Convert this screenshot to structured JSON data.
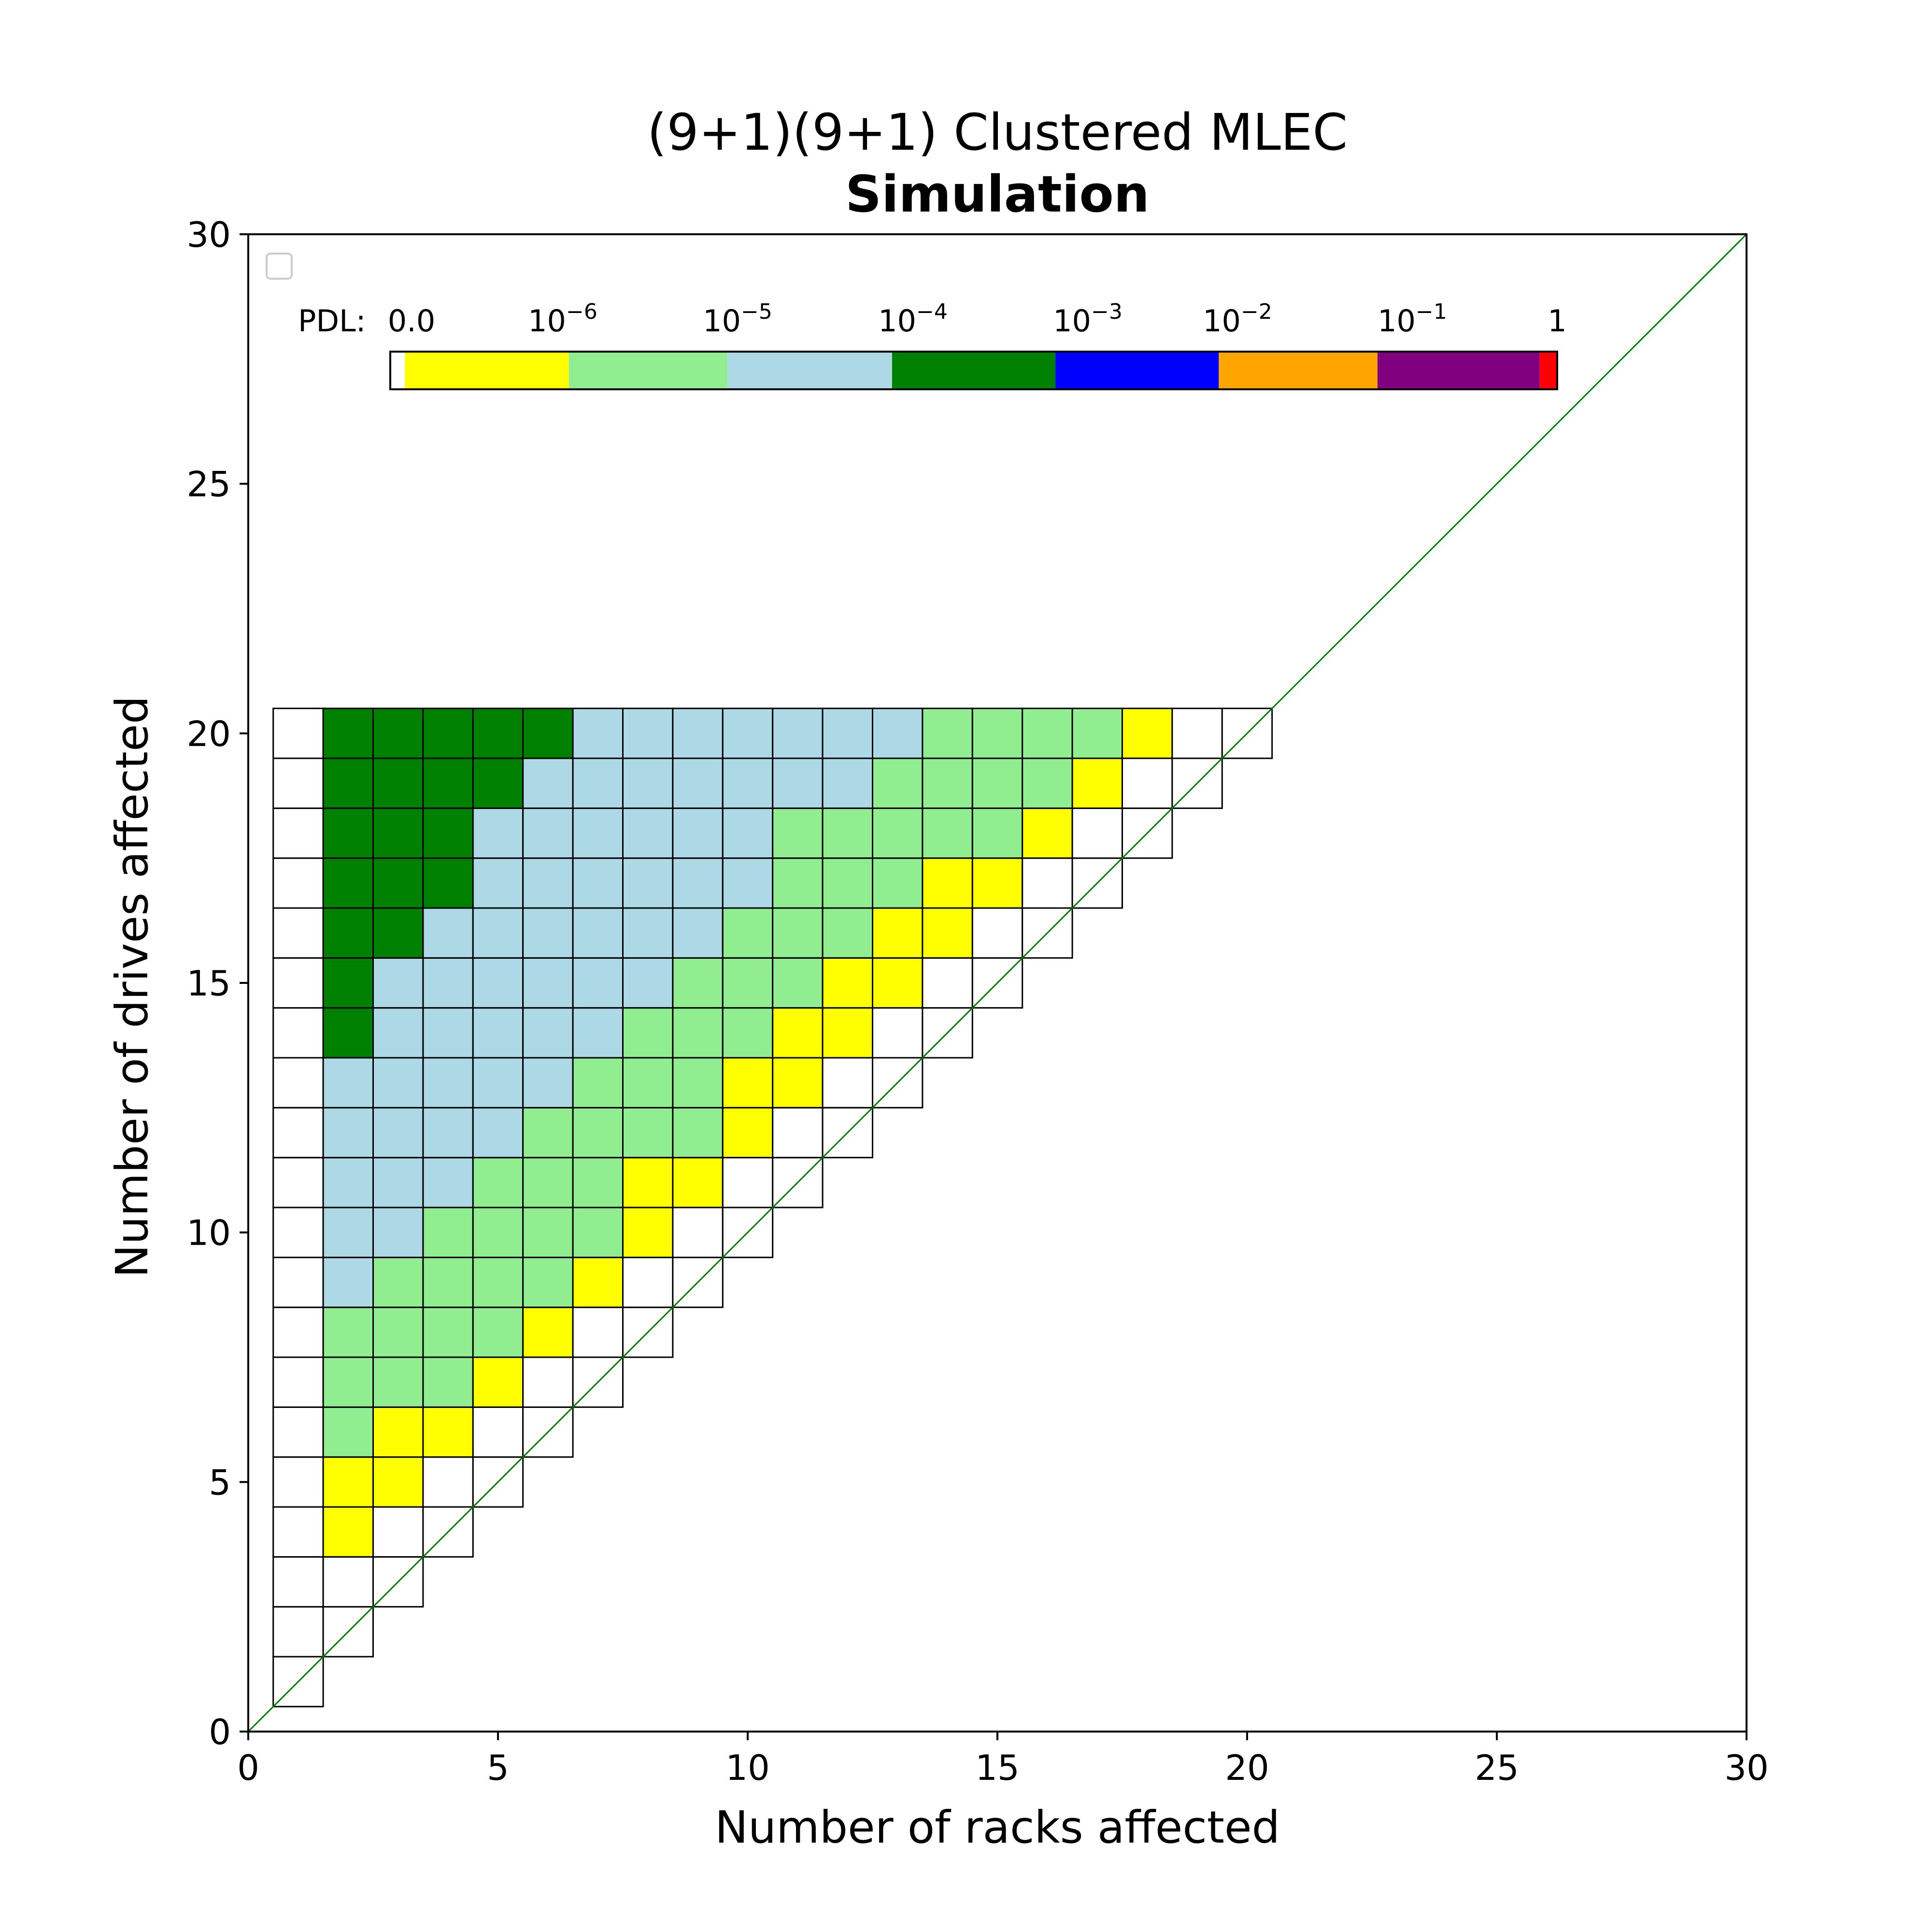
{
  "chart_data": {
    "type": "heatmap",
    "title": "(9+1)(9+1) Clustered MLEC",
    "subtitle": "Simulation",
    "xlabel": "Number of racks affected",
    "ylabel": "Number of drives affected",
    "xlim": [
      0,
      30
    ],
    "ylim": [
      0,
      30
    ],
    "xticks": [
      "0",
      "5",
      "10",
      "15",
      "20",
      "25",
      "30"
    ],
    "yticks": [
      "0",
      "5",
      "10",
      "15",
      "20",
      "25",
      "30"
    ],
    "grid": false,
    "diagonal": true,
    "legend_box": "top-left",
    "colorbar": {
      "prefix": "PDL: ",
      "labels": [
        {
          "base": "0.0",
          "exp": ""
        },
        {
          "base": "10",
          "exp": "−6"
        },
        {
          "base": "10",
          "exp": "−5"
        },
        {
          "base": "10",
          "exp": "−4"
        },
        {
          "base": "10",
          "exp": "−3"
        },
        {
          "base": "10",
          "exp": "−2"
        },
        {
          "base": "10",
          "exp": "−1"
        },
        {
          "base": "1",
          "exp": ""
        }
      ],
      "colors": [
        "#ffffff",
        "#ffff00",
        "#90ee90",
        "#add8e6",
        "#008000",
        "#0000ff",
        "#ffa500",
        "#800080",
        "#ff0000"
      ],
      "stops": [
        0,
        0.0125,
        0.153,
        0.289,
        0.43,
        0.57,
        0.71,
        0.846,
        0.985,
        1
      ]
    },
    "category_colors": {
      "zero": "#ffffff",
      "1e-6": "#ffff00",
      "1e-5": "#90ee90",
      "1e-4": "#add8e6",
      "1e-3": "#008000"
    },
    "rows": [
      {
        "drives": 1,
        "cells": [
          "zero"
        ]
      },
      {
        "drives": 2,
        "cells": [
          "zero",
          "zero"
        ]
      },
      {
        "drives": 3,
        "cells": [
          "zero",
          "zero",
          "zero"
        ]
      },
      {
        "drives": 4,
        "cells": [
          "zero",
          "1e-6",
          "zero",
          "zero"
        ]
      },
      {
        "drives": 5,
        "cells": [
          "zero",
          "1e-6",
          "1e-6",
          "zero",
          "zero"
        ]
      },
      {
        "drives": 6,
        "cells": [
          "zero",
          "1e-5",
          "1e-6",
          "1e-6",
          "zero",
          "zero"
        ]
      },
      {
        "drives": 7,
        "cells": [
          "zero",
          "1e-5",
          "1e-5",
          "1e-5",
          "1e-6",
          "zero",
          "zero"
        ]
      },
      {
        "drives": 8,
        "cells": [
          "zero",
          "1e-5",
          "1e-5",
          "1e-5",
          "1e-5",
          "1e-6",
          "zero",
          "zero"
        ]
      },
      {
        "drives": 9,
        "cells": [
          "zero",
          "1e-4",
          "1e-5",
          "1e-5",
          "1e-5",
          "1e-5",
          "1e-6",
          "zero",
          "zero"
        ]
      },
      {
        "drives": 10,
        "cells": [
          "zero",
          "1e-4",
          "1e-4",
          "1e-5",
          "1e-5",
          "1e-5",
          "1e-5",
          "1e-6",
          "zero",
          "zero"
        ]
      },
      {
        "drives": 11,
        "cells": [
          "zero",
          "1e-4",
          "1e-4",
          "1e-4",
          "1e-5",
          "1e-5",
          "1e-5",
          "1e-6",
          "1e-6",
          "zero",
          "zero"
        ]
      },
      {
        "drives": 12,
        "cells": [
          "zero",
          "1e-4",
          "1e-4",
          "1e-4",
          "1e-4",
          "1e-5",
          "1e-5",
          "1e-5",
          "1e-5",
          "1e-6",
          "zero",
          "zero"
        ]
      },
      {
        "drives": 13,
        "cells": [
          "zero",
          "1e-4",
          "1e-4",
          "1e-4",
          "1e-4",
          "1e-4",
          "1e-5",
          "1e-5",
          "1e-5",
          "1e-6",
          "1e-6",
          "zero",
          "zero"
        ]
      },
      {
        "drives": 14,
        "cells": [
          "zero",
          "1e-3",
          "1e-4",
          "1e-4",
          "1e-4",
          "1e-4",
          "1e-4",
          "1e-5",
          "1e-5",
          "1e-5",
          "1e-6",
          "1e-6",
          "zero",
          "zero"
        ]
      },
      {
        "drives": 15,
        "cells": [
          "zero",
          "1e-3",
          "1e-4",
          "1e-4",
          "1e-4",
          "1e-4",
          "1e-4",
          "1e-4",
          "1e-5",
          "1e-5",
          "1e-5",
          "1e-6",
          "1e-6",
          "zero",
          "zero"
        ]
      },
      {
        "drives": 16,
        "cells": [
          "zero",
          "1e-3",
          "1e-3",
          "1e-4",
          "1e-4",
          "1e-4",
          "1e-4",
          "1e-4",
          "1e-4",
          "1e-5",
          "1e-5",
          "1e-5",
          "1e-6",
          "1e-6",
          "zero",
          "zero"
        ]
      },
      {
        "drives": 17,
        "cells": [
          "zero",
          "1e-3",
          "1e-3",
          "1e-3",
          "1e-4",
          "1e-4",
          "1e-4",
          "1e-4",
          "1e-4",
          "1e-4",
          "1e-5",
          "1e-5",
          "1e-5",
          "1e-6",
          "1e-6",
          "zero",
          "zero"
        ]
      },
      {
        "drives": 18,
        "cells": [
          "zero",
          "1e-3",
          "1e-3",
          "1e-3",
          "1e-4",
          "1e-4",
          "1e-4",
          "1e-4",
          "1e-4",
          "1e-4",
          "1e-5",
          "1e-5",
          "1e-5",
          "1e-5",
          "1e-5",
          "1e-6",
          "zero",
          "zero"
        ]
      },
      {
        "drives": 19,
        "cells": [
          "zero",
          "1e-3",
          "1e-3",
          "1e-3",
          "1e-3",
          "1e-4",
          "1e-4",
          "1e-4",
          "1e-4",
          "1e-4",
          "1e-4",
          "1e-4",
          "1e-5",
          "1e-5",
          "1e-5",
          "1e-5",
          "1e-6",
          "zero",
          "zero"
        ]
      },
      {
        "drives": 20,
        "cells": [
          "zero",
          "1e-3",
          "1e-3",
          "1e-3",
          "1e-3",
          "1e-3",
          "1e-4",
          "1e-4",
          "1e-4",
          "1e-4",
          "1e-4",
          "1e-4",
          "1e-4",
          "1e-5",
          "1e-5",
          "1e-5",
          "1e-5",
          "1e-6",
          "zero",
          "zero"
        ]
      }
    ]
  }
}
